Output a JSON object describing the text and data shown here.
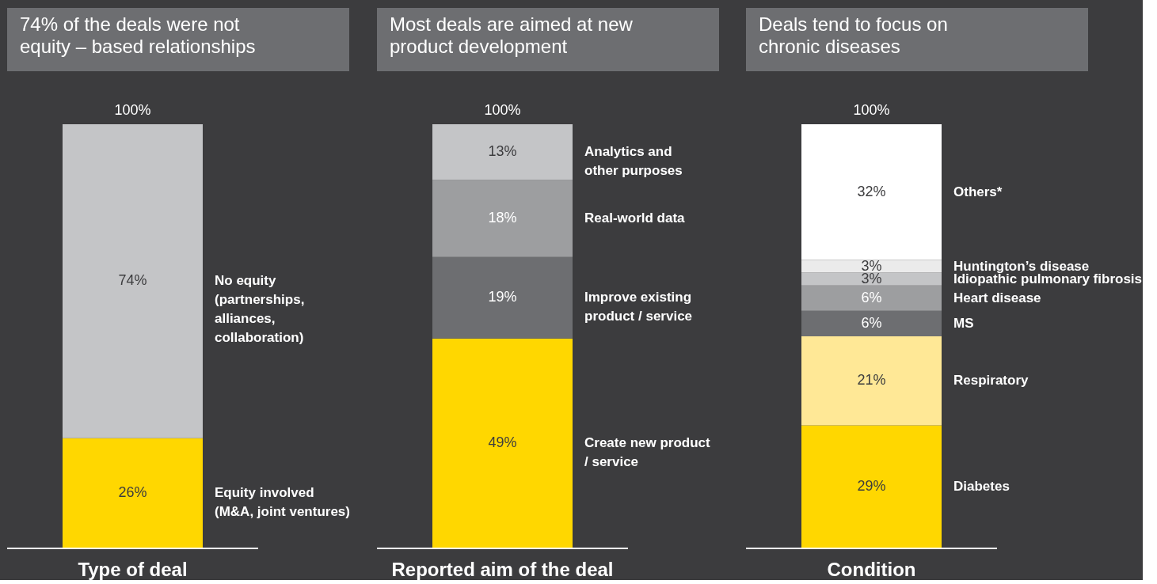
{
  "chart_data": [
    {
      "type": "bar",
      "title": "74% of the deals were not\nequity – based relationships",
      "xlabel": "Type of deal",
      "categories": [
        null
      ],
      "stacked": true,
      "totals": [
        "100%"
      ],
      "series": [
        {
          "name": "Equity involved\n(M&A, joint ventures)",
          "color": "#ffd700",
          "values": [
            26
          ],
          "value_labels": [
            "26%"
          ]
        },
        {
          "name": "No equity\n(partnerships,\nalliances,\ncollaboration)",
          "color": "#c4c5c7",
          "values": [
            74
          ],
          "value_labels": [
            "74%"
          ]
        }
      ]
    },
    {
      "type": "bar",
      "title": "Most deals are aimed at new\nproduct development",
      "xlabel": "Reported aim of the deal",
      "categories": [
        null
      ],
      "stacked": true,
      "totals": [
        "100%"
      ],
      "series": [
        {
          "name": "Create new product\n/ service",
          "color": "#ffd700",
          "values": [
            49
          ],
          "value_labels": [
            "49%"
          ]
        },
        {
          "name": "Improve existing\nproduct / service",
          "color": "#6d6e71",
          "values": [
            19
          ],
          "value_labels": [
            "19%"
          ]
        },
        {
          "name": "Real-world data",
          "color": "#9d9ea0",
          "values": [
            18
          ],
          "value_labels": [
            "18%"
          ]
        },
        {
          "name": "Analytics and\nother purposes",
          "color": "#c4c5c7",
          "values": [
            13
          ],
          "value_labels": [
            "13%"
          ]
        }
      ]
    },
    {
      "type": "bar",
      "title": "Deals tend to focus on\nchronic diseases",
      "xlabel": "Condition",
      "categories": [
        null
      ],
      "stacked": true,
      "totals": [
        "100%"
      ],
      "series": [
        {
          "name": "Diabetes",
          "color": "#ffd700",
          "values": [
            29
          ],
          "value_labels": [
            "29%"
          ]
        },
        {
          "name": "Respiratory",
          "color": "#ffe896",
          "values": [
            21
          ],
          "value_labels": [
            "21%"
          ]
        },
        {
          "name": "MS",
          "color": "#6d6e71",
          "values": [
            6
          ],
          "value_labels": [
            "6%"
          ]
        },
        {
          "name": "Heart disease",
          "color": "#9d9ea0",
          "values": [
            6
          ],
          "value_labels": [
            "6%"
          ]
        },
        {
          "name": "Idiopathic pulmonary fibrosis",
          "color": "#c4c5c7",
          "values": [
            3
          ],
          "value_labels": [
            "3%"
          ]
        },
        {
          "name": "Huntington’s disease",
          "color": "#ebebeb",
          "values": [
            3
          ],
          "value_labels": [
            "3%"
          ]
        },
        {
          "name": "Others*",
          "color": "#ffffff",
          "values": [
            32
          ],
          "value_labels": [
            "32%"
          ]
        }
      ]
    }
  ]
}
